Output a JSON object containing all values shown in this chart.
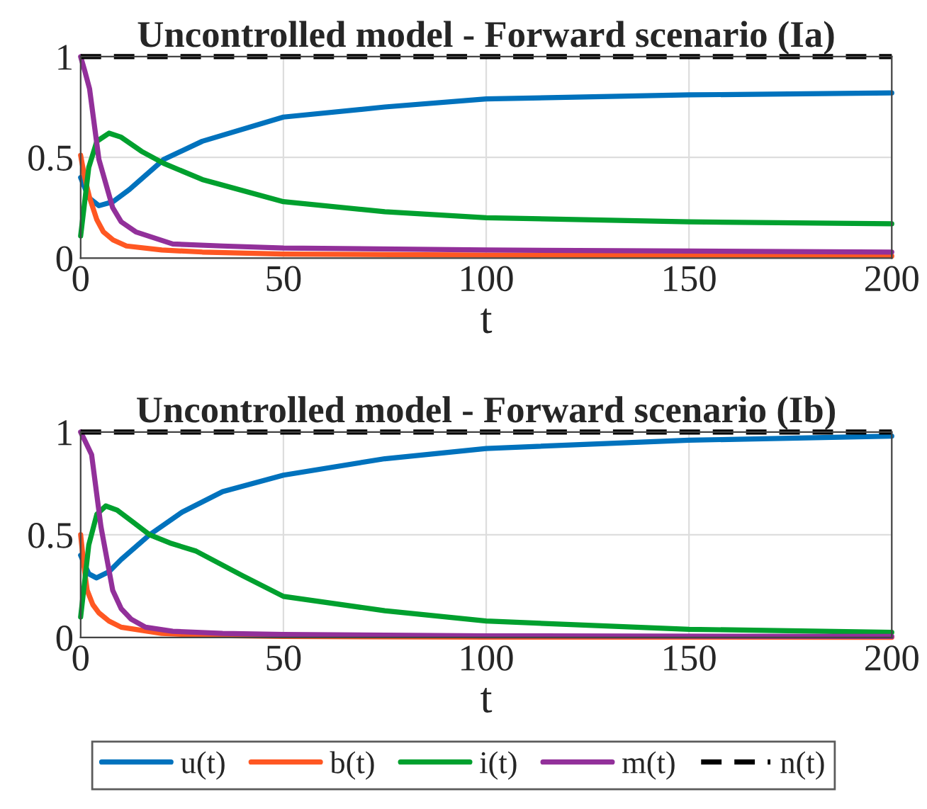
{
  "chart_data": [
    {
      "type": "line",
      "title": "Uncontrolled model - Forward scenario (Ia)",
      "xlabel": "t",
      "xlim": [
        0,
        200
      ],
      "ylim": [
        0,
        1
      ],
      "xticks": [
        0,
        50,
        100,
        150,
        200
      ],
      "yticks": [
        0,
        0.5,
        1
      ],
      "grid": true,
      "series": [
        {
          "color": "#0072bd",
          "x": [
            0,
            2,
            4.5,
            8,
            12,
            20.5,
            30,
            50,
            75,
            100,
            150,
            200
          ],
          "values": [
            0.4,
            0.3,
            0.26,
            0.28,
            0.34,
            0.49,
            0.58,
            0.7,
            0.75,
            0.79,
            0.81,
            0.82
          ]
        },
        {
          "color": "#ff5722",
          "x": [
            0,
            1,
            2.2,
            4,
            5.6,
            8,
            11.3,
            20,
            30,
            50,
            100,
            150,
            200
          ],
          "values": [
            0.51,
            0.4,
            0.3,
            0.19,
            0.13,
            0.09,
            0.06,
            0.04,
            0.03,
            0.02,
            0.015,
            0.012,
            0.01
          ]
        },
        {
          "color": "#00a02e",
          "x": [
            0,
            2,
            4,
            7,
            10,
            15,
            20.5,
            30,
            50,
            75,
            100,
            150,
            200
          ],
          "values": [
            0.11,
            0.45,
            0.58,
            0.62,
            0.6,
            0.53,
            0.47,
            0.39,
            0.28,
            0.23,
            0.2,
            0.18,
            0.17
          ]
        },
        {
          "color": "#92309a",
          "x": [
            0,
            1,
            2.2,
            4.5,
            7.9,
            10,
            13.6,
            22.7,
            35,
            50,
            100,
            150,
            200
          ],
          "values": [
            1,
            0.93,
            0.84,
            0.49,
            0.25,
            0.18,
            0.13,
            0.07,
            0.06,
            0.05,
            0.04,
            0.035,
            0.03
          ]
        },
        {
          "color": "#000000",
          "line_style": "dashed",
          "x": [
            0,
            200
          ],
          "values": [
            1,
            1
          ]
        }
      ]
    },
    {
      "type": "line",
      "title": "Uncontrolled model - Forward scenario (Ib)",
      "xlabel": "t",
      "xlim": [
        0,
        200
      ],
      "ylim": [
        0,
        1
      ],
      "xticks": [
        0,
        50,
        100,
        150,
        200
      ],
      "yticks": [
        0,
        0.5,
        1
      ],
      "grid": true,
      "legend": "bottom",
      "series": [
        {
          "name": "u(t)",
          "color": "#0072bd",
          "x": [
            0,
            2,
            3.9,
            7,
            10,
            17,
            25,
            35,
            50,
            75,
            100,
            150,
            200
          ],
          "values": [
            0.4,
            0.31,
            0.29,
            0.32,
            0.38,
            0.5,
            0.61,
            0.71,
            0.79,
            0.87,
            0.92,
            0.96,
            0.98
          ]
        },
        {
          "name": "b(t)",
          "color": "#ff5722",
          "x": [
            0,
            0.8,
            1.6,
            3,
            4.5,
            7,
            10,
            20,
            30,
            50,
            100,
            200
          ],
          "values": [
            0.5,
            0.35,
            0.23,
            0.16,
            0.12,
            0.08,
            0.05,
            0.02,
            0.01,
            0.005,
            0.002,
            0.001
          ]
        },
        {
          "name": "i(t)",
          "color": "#00a02e",
          "x": [
            0,
            2,
            4,
            6.2,
            9,
            13,
            17,
            22,
            28.5,
            40,
            50,
            75,
            100,
            150,
            200
          ],
          "values": [
            0.1,
            0.45,
            0.6,
            0.64,
            0.62,
            0.56,
            0.5,
            0.46,
            0.42,
            0.3,
            0.2,
            0.13,
            0.08,
            0.04,
            0.025
          ]
        },
        {
          "name": "m(t)",
          "color": "#92309a",
          "x": [
            0,
            1,
            2.7,
            5,
            7.9,
            10,
            12.4,
            16,
            22.7,
            35,
            50,
            100,
            200
          ],
          "values": [
            1,
            0.96,
            0.89,
            0.54,
            0.23,
            0.14,
            0.09,
            0.05,
            0.03,
            0.02,
            0.015,
            0.008,
            0.005
          ]
        },
        {
          "name": "n(t)",
          "color": "#000000",
          "line_style": "dashed",
          "x": [
            0,
            200
          ],
          "values": [
            1,
            1
          ]
        }
      ]
    }
  ]
}
